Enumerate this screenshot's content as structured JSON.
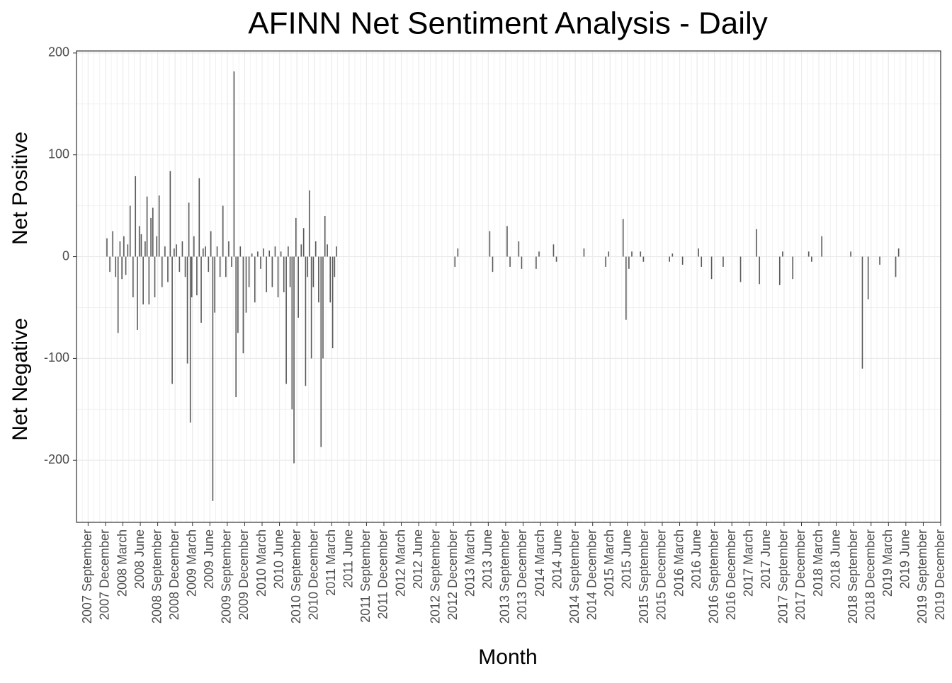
{
  "chart_data": {
    "type": "bar",
    "title": "AFINN Net Sentiment Analysis - Daily",
    "x_label": "Month",
    "y_label_positive": "Net Positive",
    "y_label_negative": "Net Negative",
    "color": "#595959",
    "grid": true,
    "ylim": [
      -261,
      202
    ],
    "yticks": [
      -200,
      -100,
      0,
      100,
      200
    ],
    "xlim": [
      "2007-07",
      "2019-12"
    ],
    "xticks": [
      {
        "value": "2007-09",
        "label": "2007 September"
      },
      {
        "value": "2007-12",
        "label": "2007 December"
      },
      {
        "value": "2008-03",
        "label": "2008 March"
      },
      {
        "value": "2008-06",
        "label": "2008 June"
      },
      {
        "value": "2008-09",
        "label": "2008 September"
      },
      {
        "value": "2008-12",
        "label": "2008 December"
      },
      {
        "value": "2009-03",
        "label": "2009 March"
      },
      {
        "value": "2009-06",
        "label": "2009 June"
      },
      {
        "value": "2009-09",
        "label": "2009 September"
      },
      {
        "value": "2009-12",
        "label": "2009 December"
      },
      {
        "value": "2010-03",
        "label": "2010 March"
      },
      {
        "value": "2010-06",
        "label": "2010 June"
      },
      {
        "value": "2010-09",
        "label": "2010 September"
      },
      {
        "value": "2010-12",
        "label": "2010 December"
      },
      {
        "value": "2011-03",
        "label": "2011 March"
      },
      {
        "value": "2011-06",
        "label": "2011 June"
      },
      {
        "value": "2011-09",
        "label": "2011 September"
      },
      {
        "value": "2011-12",
        "label": "2011 December"
      },
      {
        "value": "2012-03",
        "label": "2012 March"
      },
      {
        "value": "2012-06",
        "label": "2012 June"
      },
      {
        "value": "2012-09",
        "label": "2012 September"
      },
      {
        "value": "2012-12",
        "label": "2012 December"
      },
      {
        "value": "2013-03",
        "label": "2013 March"
      },
      {
        "value": "2013-06",
        "label": "2013 June"
      },
      {
        "value": "2013-09",
        "label": "2013 September"
      },
      {
        "value": "2013-12",
        "label": "2013 December"
      },
      {
        "value": "2014-03",
        "label": "2014 March"
      },
      {
        "value": "2014-06",
        "label": "2014 June"
      },
      {
        "value": "2014-09",
        "label": "2014 September"
      },
      {
        "value": "2014-12",
        "label": "2014 December"
      },
      {
        "value": "2015-03",
        "label": "2015 March"
      },
      {
        "value": "2015-06",
        "label": "2015 June"
      },
      {
        "value": "2015-09",
        "label": "2015 September"
      },
      {
        "value": "2015-12",
        "label": "2015 December"
      },
      {
        "value": "2016-03",
        "label": "2016 March"
      },
      {
        "value": "2016-06",
        "label": "2016 June"
      },
      {
        "value": "2016-09",
        "label": "2016 September"
      },
      {
        "value": "2016-12",
        "label": "2016 December"
      },
      {
        "value": "2017-03",
        "label": "2017 March"
      },
      {
        "value": "2017-06",
        "label": "2017 June"
      },
      {
        "value": "2017-09",
        "label": "2017 September"
      },
      {
        "value": "2017-12",
        "label": "2017 December"
      },
      {
        "value": "2018-03",
        "label": "2018 March"
      },
      {
        "value": "2018-06",
        "label": "2018 June"
      },
      {
        "value": "2018-09",
        "label": "2018 September"
      },
      {
        "value": "2018-12",
        "label": "2018 December"
      },
      {
        "value": "2019-03",
        "label": "2019 March"
      },
      {
        "value": "2019-06",
        "label": "2019 June"
      },
      {
        "value": "2019-09",
        "label": "2019 September"
      },
      {
        "value": "2019-12",
        "label": "2019 December"
      }
    ],
    "x": [
      "2007-12",
      "2007-12",
      "2008-01",
      "2008-01",
      "2008-02",
      "2008-02",
      "2008-02",
      "2008-03",
      "2008-03",
      "2008-03",
      "2008-04",
      "2008-04",
      "2008-05",
      "2008-05",
      "2008-05",
      "2008-06",
      "2008-06",
      "2008-06",
      "2008-07",
      "2008-07",
      "2008-07",
      "2008-08",
      "2008-08",
      "2008-08",
      "2008-09",
      "2008-09",
      "2008-10",
      "2008-10",
      "2008-11",
      "2008-11",
      "2008-11",
      "2008-12",
      "2008-12",
      "2009-01",
      "2009-01",
      "2009-02",
      "2009-02",
      "2009-02",
      "2009-02",
      "2009-03",
      "2009-03",
      "2009-04",
      "2009-04",
      "2009-04",
      "2009-05",
      "2009-05",
      "2009-06",
      "2009-06",
      "2009-06",
      "2009-07",
      "2009-07",
      "2009-08",
      "2009-08",
      "2009-09",
      "2009-09",
      "2009-10",
      "2009-10",
      "2009-10",
      "2009-11",
      "2009-11",
      "2009-12",
      "2009-12",
      "2010-01",
      "2010-01",
      "2010-02",
      "2010-02",
      "2010-03",
      "2010-03",
      "2010-04",
      "2010-04",
      "2010-05",
      "2010-05",
      "2010-06",
      "2010-06",
      "2010-07",
      "2010-07",
      "2010-07",
      "2010-08",
      "2010-08",
      "2010-08",
      "2010-09",
      "2010-09",
      "2010-10",
      "2010-10",
      "2010-10",
      "2010-11",
      "2010-11",
      "2010-11",
      "2010-12",
      "2010-12",
      "2011-01",
      "2011-01",
      "2011-01",
      "2011-02",
      "2011-02",
      "2011-03",
      "2011-03",
      "2011-03",
      "2012-12",
      "2012-12",
      "2013-06",
      "2013-06",
      "2013-09",
      "2013-09",
      "2013-11",
      "2013-11",
      "2014-02",
      "2014-02",
      "2014-05",
      "2014-05",
      "2014-10",
      "2015-02",
      "2015-02",
      "2015-05",
      "2015-05",
      "2015-06",
      "2015-06",
      "2015-08",
      "2015-08",
      "2016-01",
      "2016-01",
      "2016-03",
      "2016-06",
      "2016-06",
      "2016-08",
      "2016-10",
      "2017-01",
      "2017-04",
      "2017-04",
      "2017-08",
      "2017-08",
      "2017-10",
      "2018-01",
      "2018-01",
      "2018-03",
      "2018-08",
      "2018-10",
      "2018-11",
      "2019-01",
      "2019-04",
      "2019-04"
    ],
    "values": [
      18,
      -15,
      25,
      -20,
      -75,
      15,
      -22,
      20,
      -18,
      12,
      50,
      -40,
      79,
      -72,
      30,
      22,
      -47,
      15,
      59,
      -47,
      38,
      48,
      -40,
      20,
      60,
      -30,
      10,
      -25,
      84,
      -125,
      8,
      12,
      -15,
      15,
      -20,
      -105,
      53,
      -163,
      -40,
      20,
      -38,
      77,
      -65,
      8,
      10,
      -15,
      25,
      -240,
      -55,
      10,
      -20,
      50,
      -20,
      15,
      -10,
      182,
      -138,
      -75,
      10,
      -95,
      -55,
      -30,
      3,
      -45,
      5,
      -12,
      8,
      -35,
      6,
      -30,
      10,
      -40,
      5,
      -35,
      -125,
      10,
      -30,
      -150,
      -203,
      38,
      -60,
      12,
      28,
      -127,
      -20,
      65,
      -100,
      -30,
      15,
      -45,
      -187,
      -100,
      40,
      12,
      -45,
      -90,
      -20,
      10,
      -10,
      8,
      25,
      -15,
      30,
      -10,
      15,
      -12,
      -12,
      5,
      12,
      -5,
      8,
      -10,
      5,
      37,
      -62,
      -12,
      5,
      5,
      -5,
      -5,
      3,
      -8,
      8,
      -10,
      -22,
      -10,
      -25,
      27,
      -27,
      -28,
      5,
      -22,
      5,
      -5,
      20,
      5,
      -110,
      -42,
      -8,
      -20,
      8
    ]
  }
}
